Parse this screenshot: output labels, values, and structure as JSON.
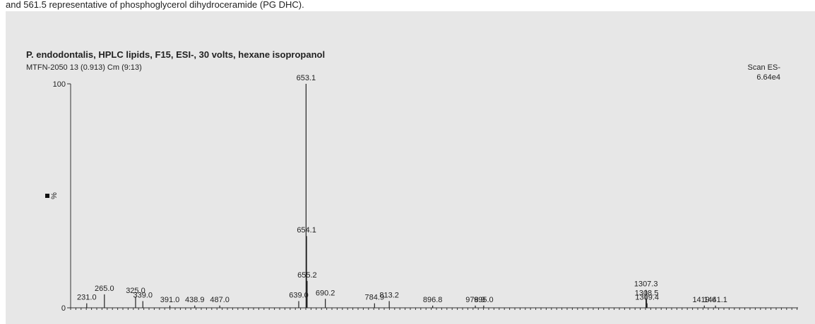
{
  "caption": "and 561.5 representative of phosphoglycerol dihydroceramide (PG DHC).",
  "chart_data": {
    "type": "bar",
    "title": "P. endodontalis, HPLC lipids, F15, ESI-, 30 volts, hexane isopropanol",
    "subtitle": "MTFN-2050 13 (0.913) Cm (9:13)",
    "scan_label": "Scan ES-",
    "intensity": "6.64e4",
    "y_label": "%",
    "color": "#222222",
    "xlim": [
      200,
      1600
    ],
    "ylim": [
      0,
      100
    ],
    "yticks": [
      0,
      100
    ],
    "x": [
      231.0,
      265.0,
      325.0,
      339.0,
      391.0,
      438.9,
      487.0,
      639.0,
      653.1,
      654.1,
      655.2,
      690.2,
      784.9,
      813.2,
      896.8,
      978.9,
      995.0,
      1307.3,
      1308.5,
      1309.4,
      1419.6,
      1441.1
    ],
    "x_labels": [
      "231.0",
      "265.0",
      "325.0",
      "339.0",
      "391.0",
      "438.9",
      "487.0",
      "639.0",
      "653.1",
      "654.1",
      "655.2",
      "690.2",
      "784.9",
      "813.2",
      "896.8",
      "978.9",
      "995.0",
      "1307.3",
      "1308.5",
      "1309.4",
      "1419.6",
      "1441.1"
    ],
    "values": [
      2,
      6,
      5,
      3,
      1,
      1,
      1,
      3,
      100,
      32,
      12,
      4,
      2,
      3,
      1,
      1,
      1,
      8,
      4,
      2,
      1,
      1
    ]
  }
}
